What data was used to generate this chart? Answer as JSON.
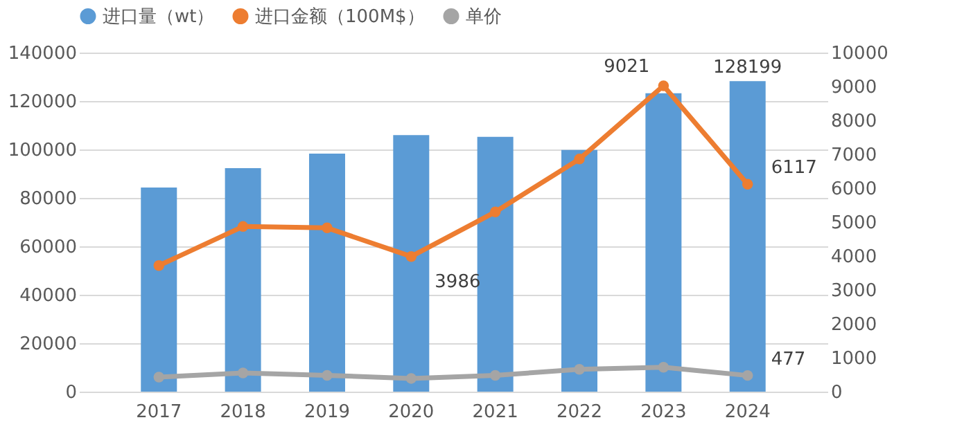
{
  "chart_data": {
    "type": "bar",
    "categories": [
      "2017",
      "2018",
      "2019",
      "2020",
      "2021",
      "2022",
      "2023",
      "2024"
    ],
    "series": [
      {
        "name": "进口量（wt）",
        "type": "bar",
        "color": "#5b9bd5",
        "values": [
          84300,
          92300,
          98300,
          105900,
          105200,
          99800,
          123200,
          128199
        ],
        "value_labels": [
          null,
          null,
          null,
          null,
          null,
          null,
          null,
          "128199"
        ]
      },
      {
        "name": "进口金额（100M$）",
        "type": "line",
        "axis": "y2",
        "color": "#ed7d31",
        "marker": "circle",
        "values": [
          3720,
          4870,
          4830,
          3986,
          5300,
          6860,
          9021,
          6117
        ],
        "value_labels": [
          null,
          null,
          null,
          "3986",
          null,
          null,
          "9021",
          "6117"
        ]
      },
      {
        "name": "单价",
        "type": "line",
        "axis": "y2",
        "color": "#a5a5a5",
        "marker": "circle",
        "values": [
          430,
          550,
          480,
          390,
          480,
          660,
          720,
          477
        ],
        "value_labels": [
          null,
          null,
          null,
          null,
          null,
          null,
          null,
          "477"
        ]
      }
    ],
    "ylim": [
      0,
      140000
    ],
    "yticks": [
      0,
      20000,
      40000,
      60000,
      80000,
      100000,
      120000,
      140000
    ],
    "y2lim": [
      0,
      10000
    ],
    "y2ticks": [
      0,
      1000,
      2000,
      3000,
      4000,
      5000,
      6000,
      7000,
      8000,
      9000,
      10000
    ],
    "grid": "y",
    "legend": "top"
  }
}
